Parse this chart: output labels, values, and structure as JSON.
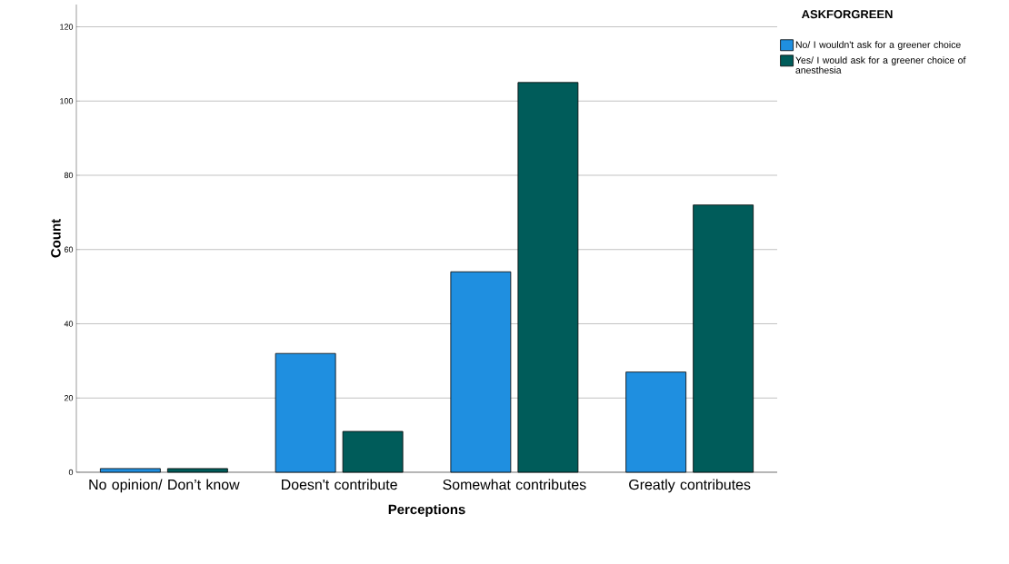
{
  "chart_data": {
    "type": "bar",
    "xlabel": "Perceptions",
    "ylabel": "Count",
    "legend_title": "ASKFORGREEN",
    "categories": [
      "No opinion/ Don’t know",
      "Doesn't contribute",
      "Somewhat contributes",
      "Greatly contributes"
    ],
    "series": [
      {
        "name": "No/ I wouldn't ask for a greener choice",
        "color": "#1f8fe0",
        "values": [
          1,
          32,
          54,
          27
        ]
      },
      {
        "name": "Yes/ I would ask for a greener choice of anesthesia",
        "color": "#005c5a",
        "values": [
          1,
          11,
          105,
          72
        ]
      }
    ],
    "ylim": [
      0,
      126
    ],
    "yticks": [
      0,
      20,
      40,
      60,
      80,
      100,
      120
    ],
    "grid": "y",
    "legend": "top right"
  }
}
